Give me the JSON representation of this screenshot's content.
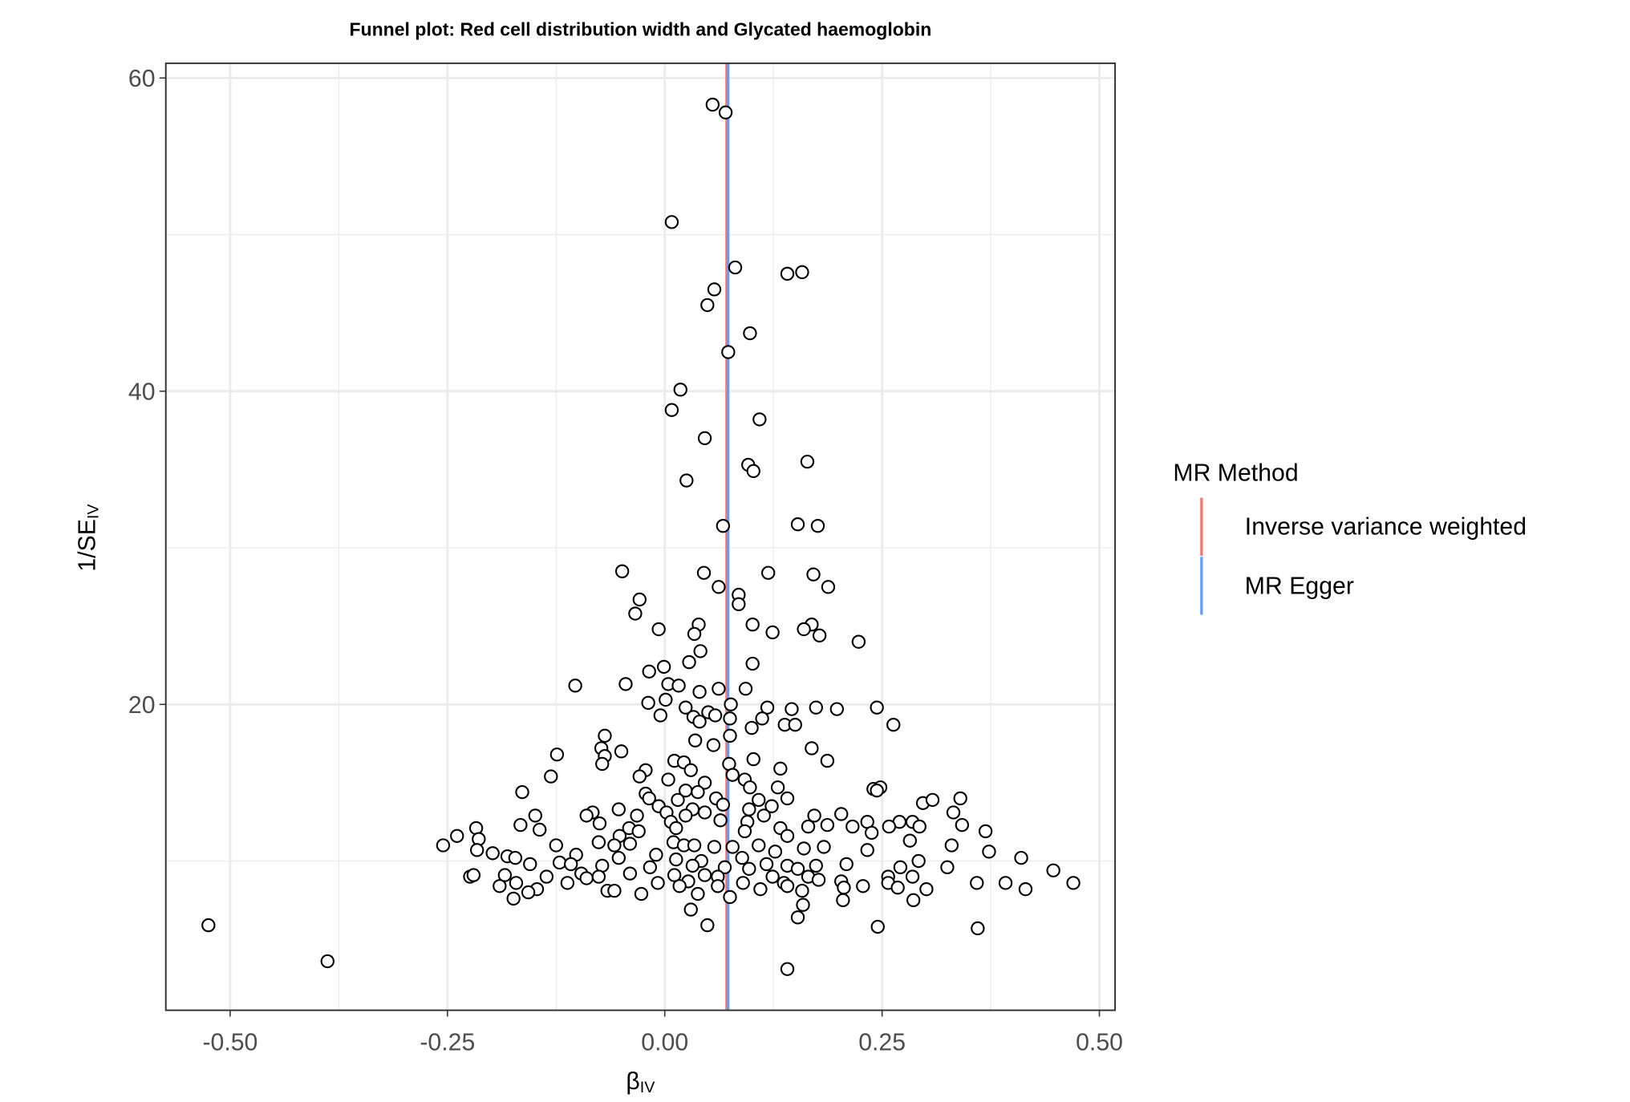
{
  "chart_data": {
    "type": "scatter",
    "title": "Funnel plot: Red cell distribution width and Glycated haemoglobin",
    "x_label": "β",
    "x_label_sub": "IV",
    "y_label": "1/SE",
    "y_label_sub": "IV",
    "xlim": [
      -0.574,
      0.518
    ],
    "ylim": [
      0.47,
      60.94
    ],
    "xticks": [
      {
        "value": -0.5,
        "label": "-0.50"
      },
      {
        "value": -0.25,
        "label": "-0.25"
      },
      {
        "value": 0,
        "label": "0.00"
      },
      {
        "value": 0.25,
        "label": "0.25"
      },
      {
        "value": 0.5,
        "label": "0.50"
      }
    ],
    "yticks": [
      20,
      40,
      60
    ],
    "xminor": [
      -0.375,
      -0.125,
      0.125,
      0.375
    ],
    "yminor": [
      10,
      30,
      50
    ],
    "grid": true,
    "point_fill": "#ffffff",
    "point_stroke": "#000000",
    "legend_title": "MR Method",
    "legend_position": "right",
    "lines": [
      {
        "name": "Inverse variance weighted",
        "color": "#F8766D",
        "value": 0.071
      },
      {
        "name": "MR Egger",
        "color": "#619CFF",
        "value": 0.073
      }
    ],
    "x": [
      0.055,
      0.07,
      0.008,
      0.081,
      0.141,
      0.158,
      0.057,
      0.049,
      0.098,
      0.073,
      0.018,
      0.008,
      0.109,
      0.046,
      0.096,
      0.102,
      0.164,
      0.025,
      0.067,
      0.153,
      0.176,
      -0.049,
      0.045,
      0.119,
      0.171,
      0.188,
      0.062,
      0.085,
      -0.029,
      0.085,
      -0.034,
      0.039,
      0.101,
      0.169,
      0.16,
      0.124,
      -0.007,
      0.034,
      0.178,
      0.223,
      0.041,
      0.028,
      0.101,
      -0.001,
      -0.018,
      0.004,
      0.016,
      -0.103,
      -0.045,
      0.093,
      0.062,
      0.04,
      0.001,
      -0.019,
      0.076,
      0.024,
      0.118,
      0.146,
      0.174,
      0.198,
      0.244,
      -0.005,
      0.05,
      0.058,
      0.033,
      0.075,
      0.112,
      0.04,
      0.138,
      0.15,
      0.1,
      0.263,
      0.075,
      -0.069,
      0.035,
      -0.073,
      0.056,
      0.169,
      -0.124,
      -0.069,
      -0.05,
      0.011,
      0.022,
      0.102,
      0.187,
      -0.072,
      0.03,
      0.074,
      0.133,
      -0.022,
      -0.131,
      -0.029,
      0.078,
      0.004,
      0.092,
      0.046,
      -0.164,
      -0.022,
      0.024,
      0.038,
      0.098,
      0.13,
      0.24,
      0.248,
      0.244,
      -0.018,
      0.015,
      0.059,
      0.108,
      0.141,
      0.297,
      0.308,
      0.34,
      -0.007,
      0.032,
      0.067,
      0.123,
      -0.053,
      0.002,
      0.046,
      0.097,
      -0.083,
      -0.09,
      -0.032,
      0.024,
      0.114,
      0.172,
      0.203,
      0.332,
      -0.149,
      -0.166,
      -0.075,
      -0.041,
      0.007,
      0.064,
      0.095,
      0.133,
      0.165,
      0.187,
      0.216,
      0.233,
      0.27,
      0.285,
      0.342,
      0.369,
      -0.217,
      -0.239,
      -0.144,
      -0.214,
      -0.052,
      -0.03,
      0.013,
      0.092,
      0.141,
      0.238,
      0.258,
      0.293,
      0.282,
      -0.255,
      -0.216,
      -0.198,
      -0.125,
      -0.076,
      -0.058,
      -0.04,
      -0.01,
      0.01,
      0.022,
      0.034,
      0.057,
      0.078,
      0.108,
      0.127,
      0.16,
      0.183,
      0.233,
      0.33,
      0.373,
      0.41,
      -0.181,
      -0.172,
      -0.121,
      -0.102,
      -0.053,
      -0.017,
      0.013,
      0.042,
      0.089,
      0.117,
      0.141,
      0.174,
      0.209,
      0.292,
      0.325,
      -0.155,
      -0.108,
      -0.072,
      0.032,
      0.069,
      0.097,
      0.153,
      0.271,
      0.447,
      -0.136,
      -0.096,
      -0.04,
      0.011,
      0.046,
      0.124,
      0.165,
      0.203,
      0.257,
      0.285,
      -0.224,
      -0.22,
      -0.184,
      -0.112,
      -0.09,
      -0.076,
      -0.008,
      0.027,
      0.061,
      0.09,
      0.137,
      0.177,
      0.228,
      0.257,
      0.392,
      0.359,
      0.47,
      -0.19,
      -0.171,
      -0.147,
      -0.157,
      -0.066,
      -0.058,
      -0.027,
      0.017,
      0.038,
      0.061,
      0.11,
      0.141,
      0.158,
      0.206,
      0.268,
      0.301,
      0.415,
      -0.174,
      0.075,
      0.159,
      0.205,
      0.286,
      0.03,
      0.153,
      0.049,
      0.245,
      -0.525,
      0.36,
      -0.388,
      0.141
    ],
    "values": [
      58.3,
      57.8,
      50.8,
      47.9,
      47.5,
      47.6,
      46.5,
      45.5,
      43.7,
      42.5,
      40.1,
      38.8,
      38.2,
      37.0,
      35.3,
      34.9,
      35.5,
      34.3,
      31.4,
      31.5,
      31.4,
      28.5,
      28.4,
      28.4,
      28.3,
      27.5,
      27.5,
      27.0,
      26.7,
      26.4,
      25.8,
      25.1,
      25.1,
      25.1,
      24.8,
      24.6,
      24.8,
      24.5,
      24.4,
      24.0,
      23.4,
      22.7,
      22.6,
      22.4,
      22.1,
      21.3,
      21.2,
      21.2,
      21.3,
      21.0,
      21.0,
      20.8,
      20.3,
      20.1,
      20.0,
      19.8,
      19.8,
      19.7,
      19.8,
      19.7,
      19.8,
      19.3,
      19.5,
      19.3,
      19.2,
      19.1,
      19.1,
      18.9,
      18.7,
      18.7,
      18.5,
      18.7,
      18.0,
      18.0,
      17.7,
      17.2,
      17.4,
      17.2,
      16.8,
      16.7,
      17.0,
      16.4,
      16.3,
      16.5,
      16.4,
      16.2,
      15.8,
      16.2,
      15.9,
      15.8,
      15.4,
      15.4,
      15.5,
      15.2,
      15.2,
      15.0,
      14.4,
      14.3,
      14.5,
      14.4,
      14.7,
      14.7,
      14.6,
      14.7,
      14.5,
      14.0,
      13.9,
      14.0,
      13.9,
      14.0,
      13.7,
      13.9,
      14.0,
      13.5,
      13.3,
      13.6,
      13.5,
      13.3,
      13.1,
      13.1,
      13.3,
      13.1,
      12.9,
      12.9,
      12.9,
      12.9,
      12.9,
      13.0,
      13.1,
      12.9,
      12.3,
      12.4,
      12.1,
      12.5,
      12.6,
      12.5,
      12.1,
      12.2,
      12.3,
      12.2,
      12.5,
      12.5,
      12.5,
      12.3,
      11.9,
      12.1,
      11.6,
      12.0,
      11.4,
      11.6,
      11.9,
      12.1,
      11.9,
      11.6,
      11.8,
      12.2,
      12.2,
      11.3,
      11.0,
      10.7,
      10.5,
      11.0,
      11.2,
      11.0,
      11.1,
      10.4,
      11.2,
      11.0,
      11.0,
      10.9,
      10.9,
      11.0,
      10.6,
      10.8,
      10.9,
      10.7,
      11.0,
      10.6,
      10.2,
      10.3,
      10.2,
      9.9,
      10.4,
      10.2,
      9.6,
      10.1,
      10.0,
      10.2,
      9.8,
      9.7,
      9.7,
      9.8,
      10.0,
      9.6,
      9.8,
      9.8,
      9.7,
      9.7,
      9.6,
      9.5,
      9.5,
      9.6,
      9.4,
      9.0,
      9.2,
      9.2,
      9.1,
      9.1,
      9.0,
      9.0,
      8.7,
      9.0,
      9.0,
      9.0,
      9.1,
      9.1,
      8.6,
      8.9,
      9.0,
      8.6,
      8.7,
      9.0,
      8.6,
      8.6,
      8.8,
      8.4,
      8.6,
      8.6,
      8.6,
      8.6,
      8.4,
      8.6,
      8.2,
      8.0,
      8.1,
      8.1,
      7.9,
      8.4,
      7.9,
      8.4,
      8.2,
      8.4,
      8.1,
      8.3,
      8.3,
      8.2,
      8.2,
      7.6,
      7.7,
      7.2,
      7.5,
      7.5,
      6.9,
      6.4,
      5.9,
      5.8,
      5.9,
      5.7,
      3.6,
      3.1
    ]
  }
}
